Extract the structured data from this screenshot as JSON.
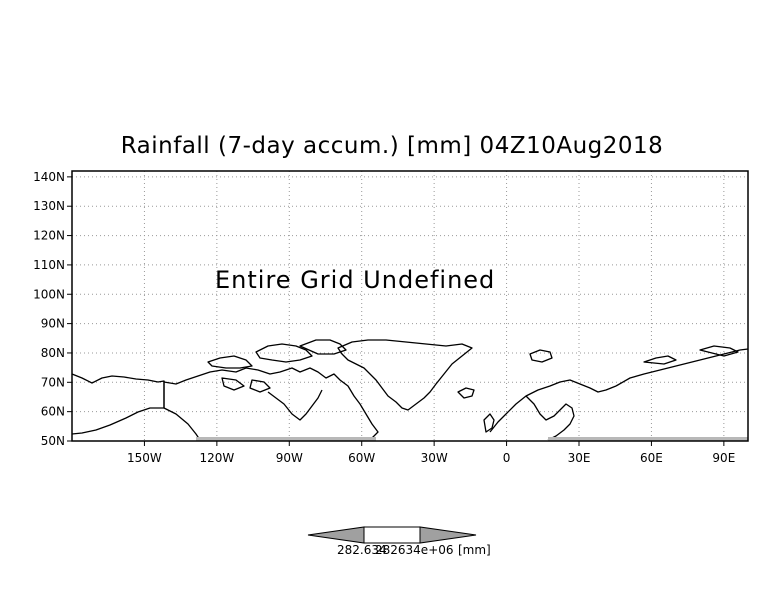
{
  "title": "Rainfall (7-day accum.) [mm] 04Z10Aug2018",
  "message": "Entire Grid Undefined",
  "map": {
    "lat_labels": [
      "140N",
      "130N",
      "120N",
      "110N",
      "100N",
      "90N",
      "80N",
      "70N",
      "60N",
      "50N"
    ],
    "lon_labels": [
      "150W",
      "120W",
      "90W",
      "60W",
      "30W",
      "0",
      "30E",
      "60E",
      "90E"
    ],
    "lat_range": [
      50,
      142
    ],
    "lon_range": [
      -180,
      100
    ]
  },
  "colorbar": {
    "value_a": "282.634",
    "value_b": "282634e+06",
    "unit": "[mm]"
  }
}
